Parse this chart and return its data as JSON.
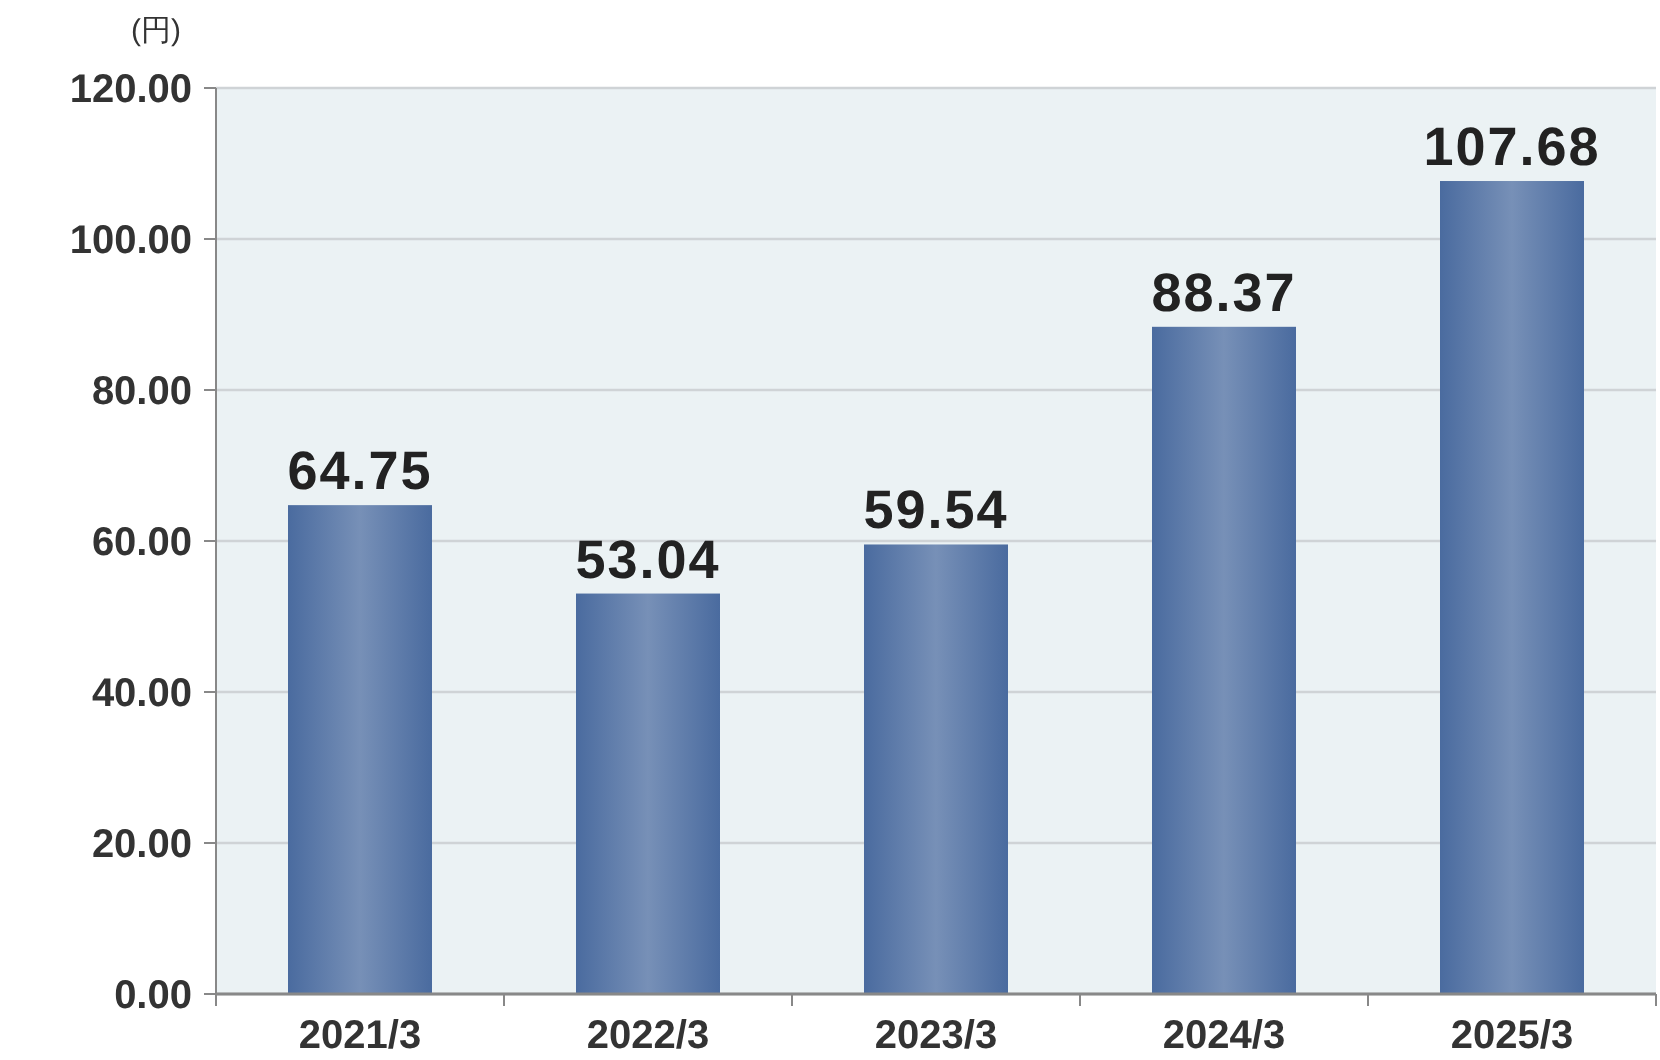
{
  "chart_data": {
    "type": "bar",
    "ylabel": "(円)",
    "categories": [
      "2021/3",
      "2022/3",
      "2023/3",
      "2024/3",
      "2025/3"
    ],
    "values": [
      64.75,
      53.04,
      59.54,
      88.37,
      107.68
    ],
    "color": "#4a6b9f",
    "ylim": [
      0,
      120
    ],
    "yticks": [
      {
        "value": 0,
        "label": "0.00"
      },
      {
        "value": 20,
        "label": "20.00"
      },
      {
        "value": 40,
        "label": "40.00"
      },
      {
        "value": 60,
        "label": "60.00"
      },
      {
        "value": 80,
        "label": "80.00"
      },
      {
        "value": 100,
        "label": "100.00"
      },
      {
        "value": 120,
        "label": "120.00"
      }
    ],
    "grid": "y",
    "data_labels": true
  }
}
